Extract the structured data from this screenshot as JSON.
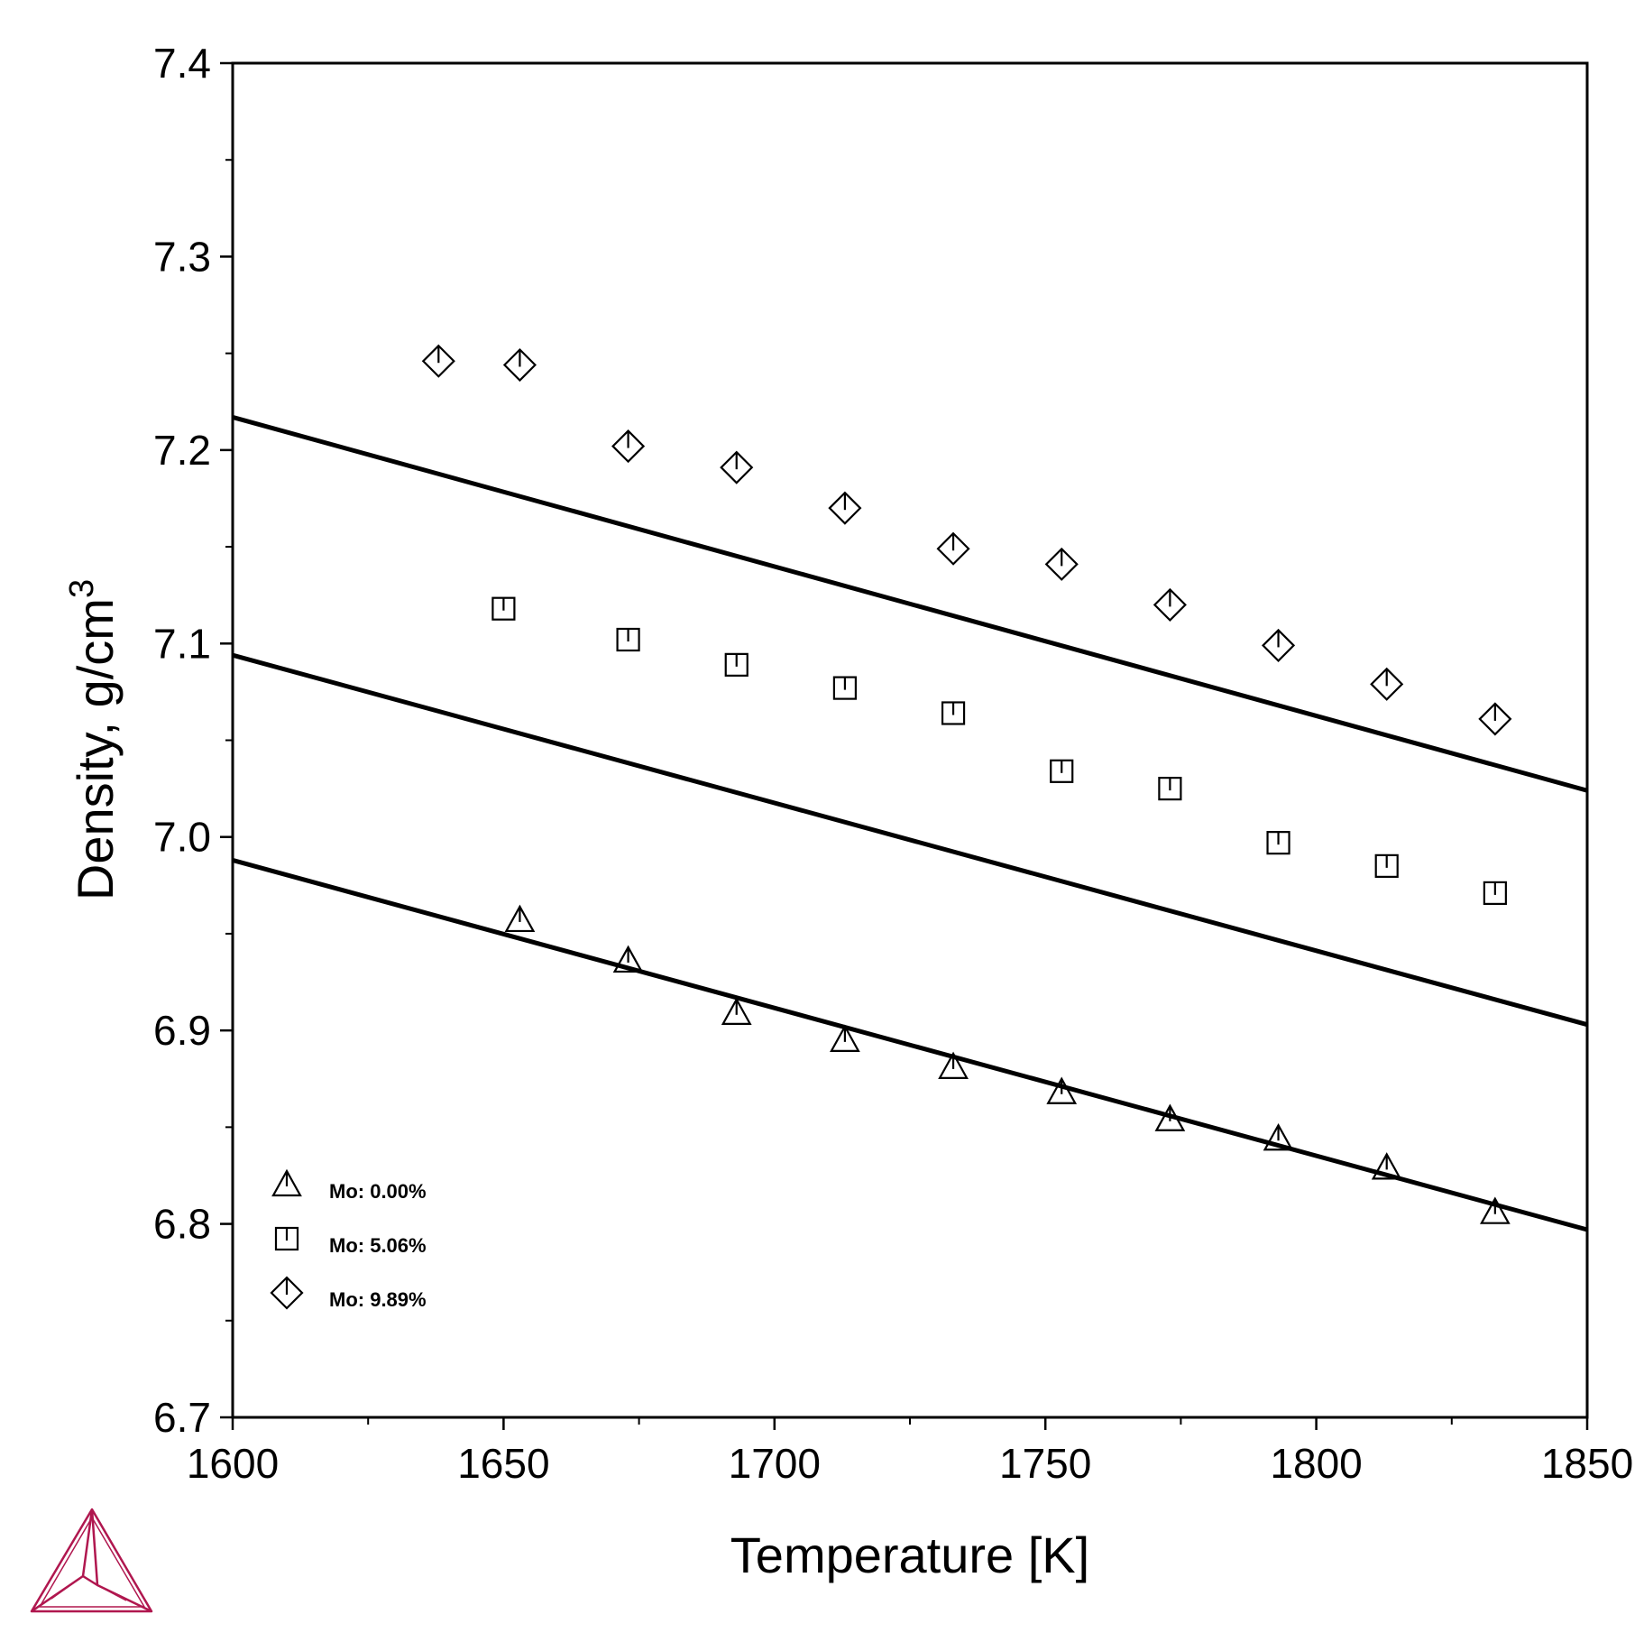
{
  "chart_data": {
    "type": "scatter",
    "xlabel": "Temperature [K]",
    "ylabel": "Density, g/cm",
    "ylabel_superscript": "3",
    "xlim": [
      1600,
      1850
    ],
    "ylim": [
      6.7,
      7.4
    ],
    "xticks": [
      "1600",
      "1650",
      "1700",
      "1750",
      "1800",
      "1850"
    ],
    "yticks": [
      "6.7",
      "6.8",
      "6.9",
      "7.0",
      "7.1",
      "7.2",
      "7.3",
      "7.4"
    ],
    "grid": false,
    "legend_position": "bottom-left",
    "lines": [
      {
        "x": [
          1600,
          1850
        ],
        "y": [
          6.988,
          6.797
        ]
      },
      {
        "x": [
          1600,
          1850
        ],
        "y": [
          7.094,
          6.903
        ]
      },
      {
        "x": [
          1600,
          1850
        ],
        "y": [
          7.217,
          7.024
        ]
      }
    ],
    "series": [
      {
        "name": "Mo: 0.00%",
        "marker": "triangle",
        "x": [
          1653,
          1673,
          1693,
          1713,
          1733,
          1753,
          1773,
          1793,
          1813,
          1833
        ],
        "y": [
          6.957,
          6.936,
          6.909,
          6.895,
          6.881,
          6.868,
          6.854,
          6.844,
          6.829,
          6.806
        ]
      },
      {
        "name": "Mo: 5.06%",
        "marker": "square",
        "x": [
          1650,
          1673,
          1693,
          1713,
          1733,
          1753,
          1773,
          1793,
          1813,
          1833
        ],
        "y": [
          7.118,
          7.102,
          7.089,
          7.077,
          7.064,
          7.034,
          7.025,
          6.997,
          6.985,
          6.971
        ]
      },
      {
        "name": "Mo: 9.89%",
        "marker": "diamond",
        "x": [
          1638,
          1653,
          1673,
          1693,
          1713,
          1733,
          1753,
          1773,
          1793,
          1813,
          1833
        ],
        "y": [
          7.246,
          7.244,
          7.202,
          7.191,
          7.17,
          7.149,
          7.141,
          7.12,
          7.099,
          7.079,
          7.061
        ]
      }
    ]
  },
  "logo": {
    "icon": "thermo-calc-triangle-logo-icon",
    "color": "#b0174f"
  }
}
